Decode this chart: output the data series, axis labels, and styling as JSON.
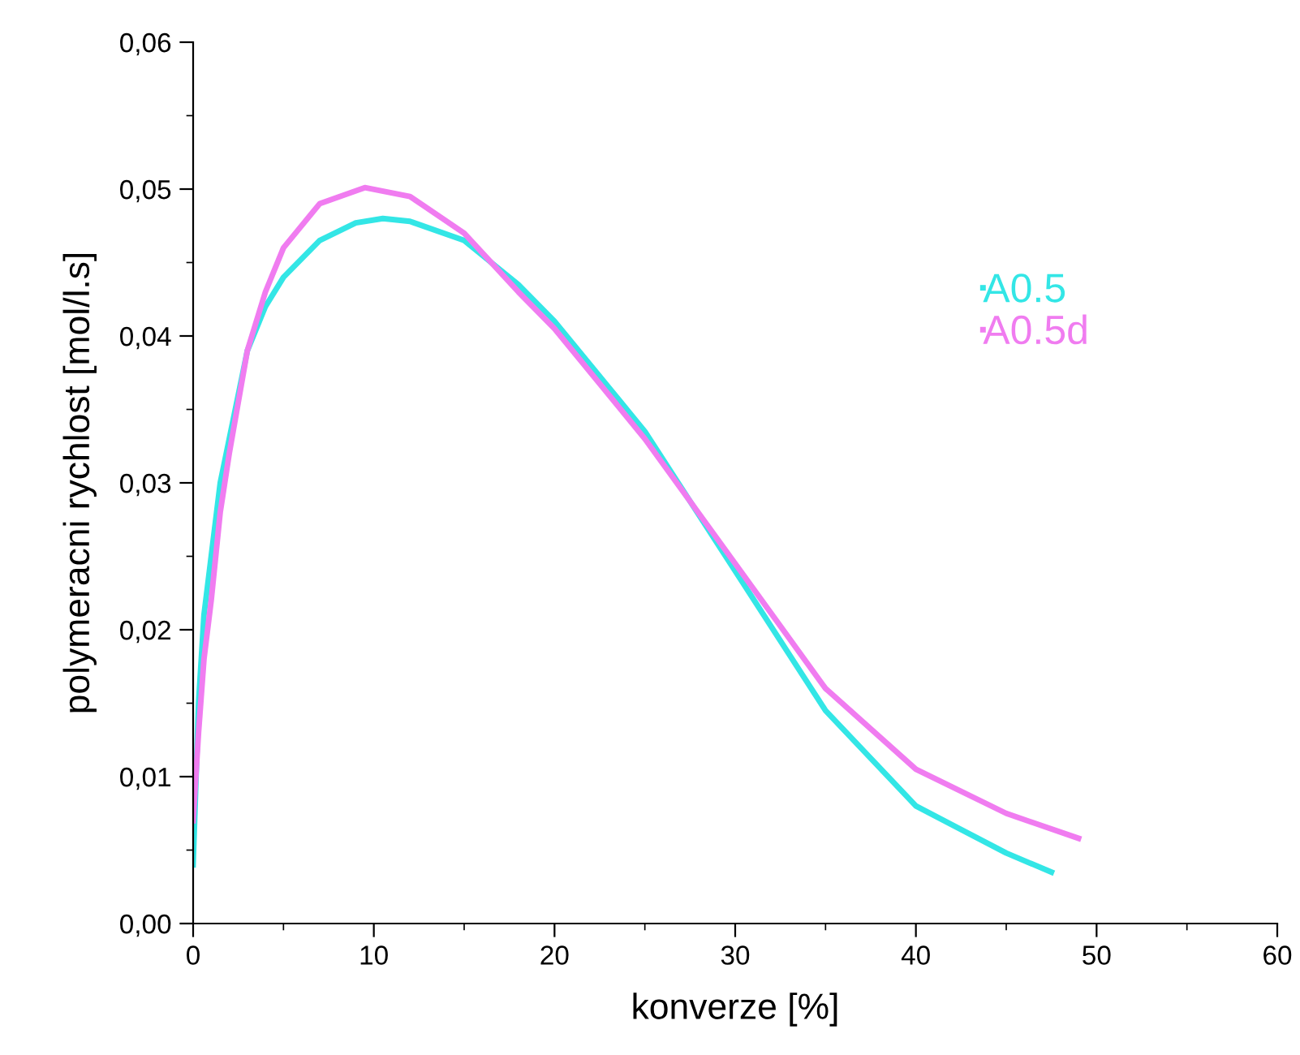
{
  "chart_data": {
    "type": "line",
    "xlabel": "konverze [%]",
    "ylabel": "polymeracni rychlost [mol/l.s]",
    "xlim": [
      0,
      60
    ],
    "xticks": [
      0,
      10,
      20,
      30,
      40,
      50,
      60
    ],
    "ylim": [
      0,
      0.06
    ],
    "yticks": [
      {
        "value": 0,
        "label": "0,00"
      },
      {
        "value": 0.01,
        "label": "0,01"
      },
      {
        "value": 0.02,
        "label": "0,02"
      },
      {
        "value": 0.03,
        "label": "0,03"
      },
      {
        "value": 0.04,
        "label": "0,04"
      },
      {
        "value": 0.05,
        "label": "0,05"
      },
      {
        "value": 0.06,
        "label": "0,06"
      }
    ],
    "grid": false,
    "legend": "top right",
    "marker": "none",
    "line_style": "solid",
    "series": [
      {
        "name": "A0.5",
        "color": "#33e6e6",
        "x": [
          0,
          0.3,
          0.6,
          1,
          1.5,
          2,
          3,
          4,
          5,
          7,
          9,
          10.5,
          12,
          15,
          18,
          20,
          25,
          30,
          35,
          40,
          45,
          47.5
        ],
        "values": [
          0.004,
          0.015,
          0.021,
          0.025,
          0.03,
          0.033,
          0.039,
          0.042,
          0.044,
          0.0465,
          0.0477,
          0.048,
          0.0478,
          0.0465,
          0.0435,
          0.041,
          0.0335,
          0.024,
          0.0145,
          0.008,
          0.0048,
          0.0035
        ]
      },
      {
        "name": "A0.5d",
        "color": "#f07cf0",
        "x": [
          0,
          0.3,
          0.6,
          1,
          1.5,
          2,
          3,
          4,
          5,
          7,
          9.5,
          12,
          15,
          18,
          20,
          25,
          30,
          35,
          40,
          45,
          49
        ],
        "values": [
          0.007,
          0.013,
          0.018,
          0.022,
          0.028,
          0.032,
          0.039,
          0.043,
          0.046,
          0.049,
          0.0501,
          0.0495,
          0.047,
          0.043,
          0.0405,
          0.033,
          0.0245,
          0.016,
          0.0105,
          0.0075,
          0.0058
        ]
      }
    ]
  }
}
